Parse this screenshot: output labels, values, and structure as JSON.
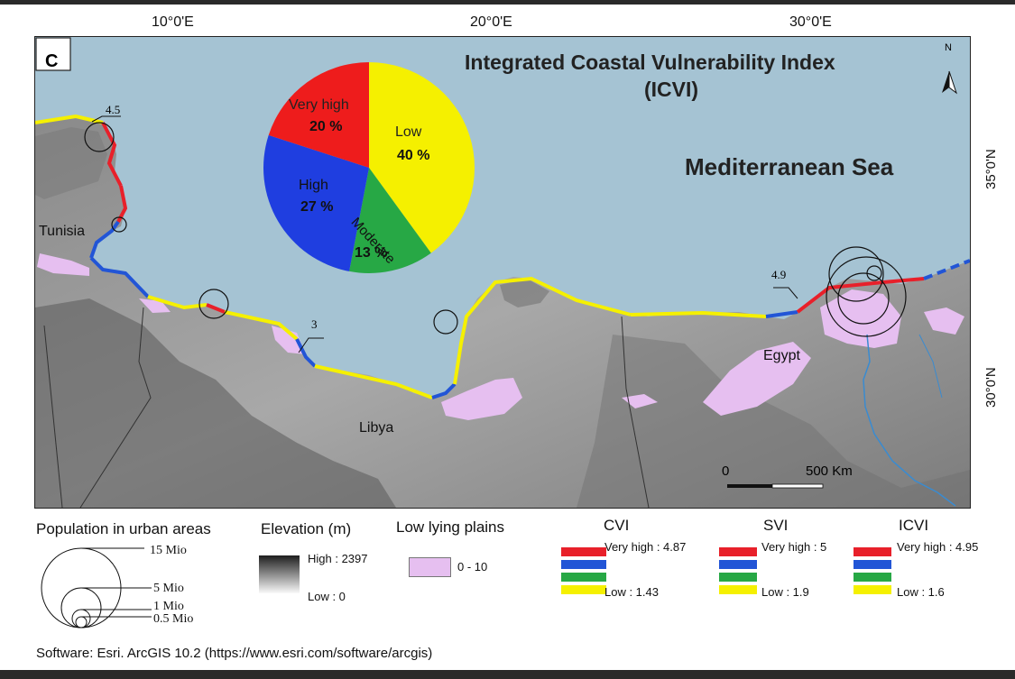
{
  "graticule": {
    "lon_labels": [
      "10°0'E",
      "20°0'E",
      "30°0'E"
    ],
    "lat_labels": [
      "35°0'N",
      "30°0'N"
    ]
  },
  "map": {
    "panel_label": "C",
    "title_line1": "Integrated Coastal Vulnerability Index",
    "title_line2": "(ICVI)",
    "sea_label": "Mediterranean Sea",
    "north_label": "N",
    "countries": [
      "Tunisia",
      "Libya",
      "Egypt"
    ],
    "callouts": [
      "4.5",
      "3",
      "4.9"
    ],
    "scalebar": {
      "start": "0",
      "end": "500 Km"
    },
    "colors": {
      "sea": "#a5c3d3",
      "very_high": "#e8202a",
      "high": "#2255d6",
      "moderate": "#27a845",
      "low": "#f5f000",
      "low_lying": "#e6bff0"
    }
  },
  "pie": {
    "slices": [
      {
        "name": "Low",
        "pct": "40 %",
        "value": 40,
        "color": "#f5f000"
      },
      {
        "name": "Moderate",
        "pct": "13 %",
        "value": 13,
        "color": "#27a845"
      },
      {
        "name": "High",
        "pct": "27 %",
        "value": 27,
        "color": "#1f3ee0"
      },
      {
        "name": "Very high",
        "pct": "20 %",
        "value": 20,
        "color": "#ee1c1c"
      }
    ]
  },
  "legend": {
    "population": {
      "title": "Population in urban areas",
      "sizes": [
        "15 Mio",
        "5 Mio",
        "1 Mio",
        "0.5 Mio"
      ]
    },
    "elevation": {
      "title": "Elevation (m)",
      "high": "High : 2397",
      "low": "Low : 0"
    },
    "plains": {
      "title": "Low lying plains",
      "range": "0 - 10"
    },
    "cvi": {
      "title": "CVI",
      "high": "Very high : 4.87",
      "low": "Low : 1.43"
    },
    "svi": {
      "title": "SVI",
      "high": "Very high : 5",
      "low": "Low : 1.9"
    },
    "icvi": {
      "title": "ICVI",
      "high": "Very high : 4.95",
      "low": "Low : 1.6"
    }
  },
  "footer": {
    "software": "Software:  Esri. ArcGIS 10.2 (https://www.esri.com/software/arcgis)"
  }
}
